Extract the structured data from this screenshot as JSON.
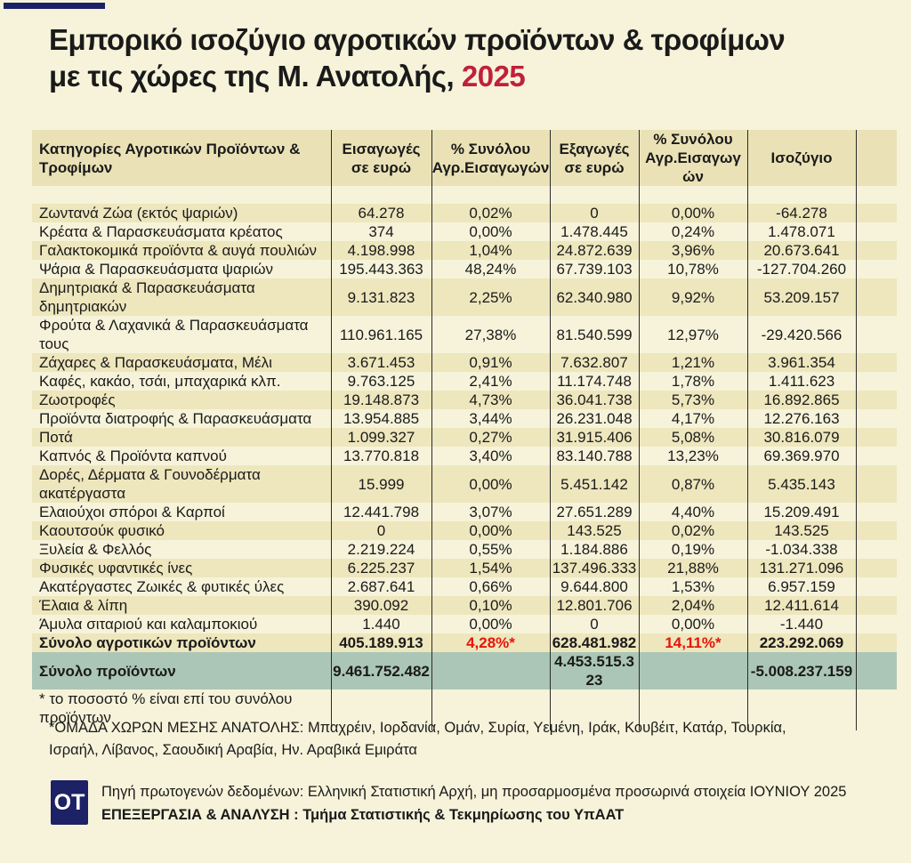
{
  "title": {
    "line1": "Εμπορικό ισοζύγιο αγροτικών προϊόντων & τροφίμων",
    "line2": "με τις χώρες της Μ. Ανατολής,",
    "year": "2025"
  },
  "colors": {
    "background": "#f6f3da",
    "stripe": "#eee6bd",
    "header_bg": "#eae2b6",
    "teal": "#abc6b6",
    "accent_red": "#c1203b",
    "pct_red": "#e81408",
    "navy": "#1d2166"
  },
  "chart_data": {
    "type": "table",
    "title": "Εμπορικό ισοζύγιο αγροτικών προϊόντων & τροφίμων με τις χώρες της Μ. Ανατολής, 2025",
    "columns": [
      "Κατηγορίες Αγροτικών Προϊόντων & Τροφίμων",
      "Εισαγωγές σε ευρώ",
      "% Συνόλου Αγρ.Εισαγωγών",
      "Εξαγωγές σε ευρώ",
      "% Συνόλου Αγρ.Εισαγωγών",
      "Ισοζύγιο"
    ],
    "rows": [
      [
        "Ζωντανά Ζώα (εκτός ψαριών)",
        "64.278",
        "0,02%",
        "0",
        "0,00%",
        "-64.278"
      ],
      [
        "Κρέατα & Παρασκευάσματα κρέατος",
        "374",
        "0,00%",
        "1.478.445",
        "0,24%",
        "1.478.071"
      ],
      [
        "Γαλακτοκομικά προϊόντα & αυγά πουλιών",
        "4.198.998",
        "1,04%",
        "24.872.639",
        "3,96%",
        "20.673.641"
      ],
      [
        "Ψάρια & Παρασκευάσματα ψαριών",
        "195.443.363",
        "48,24%",
        "67.739.103",
        "10,78%",
        "-127.704.260"
      ],
      [
        "Δημητριακά & Παρασκευάσματα δημητριακών",
        "9.131.823",
        "2,25%",
        "62.340.980",
        "9,92%",
        "53.209.157"
      ],
      [
        "Φρούτα & Λαχανικά & Παρασκευάσματα τους",
        "110.961.165",
        "27,38%",
        "81.540.599",
        "12,97%",
        "-29.420.566"
      ],
      [
        "Ζάχαρες & Παρασκευάσματα, Μέλι",
        "3.671.453",
        "0,91%",
        "7.632.807",
        "1,21%",
        "3.961.354"
      ],
      [
        "Καφές, κακάο, τσάι, μπαχαρικά κλπ.",
        "9.763.125",
        "2,41%",
        "11.174.748",
        "1,78%",
        "1.411.623"
      ],
      [
        "Ζωοτροφές",
        "19.148.873",
        "4,73%",
        "36.041.738",
        "5,73%",
        "16.892.865"
      ],
      [
        "Προϊόντα διατροφής & Παρασκευάσματα",
        "13.954.885",
        "3,44%",
        "26.231.048",
        "4,17%",
        "12.276.163"
      ],
      [
        "Ποτά",
        "1.099.327",
        "0,27%",
        "31.915.406",
        "5,08%",
        "30.816.079"
      ],
      [
        "Καπνός & Προϊόντα καπνού",
        "13.770.818",
        "3,40%",
        "83.140.788",
        "13,23%",
        "69.369.970"
      ],
      [
        "Δορές, Δέρματα & Γουνοδέρματα ακατέργαστα",
        "15.999",
        "0,00%",
        "5.451.142",
        "0,87%",
        "5.435.143"
      ],
      [
        "Ελαιούχοι σπόροι & Καρποί",
        "12.441.798",
        "3,07%",
        "27.651.289",
        "4,40%",
        "15.209.491"
      ],
      [
        "Καουτσούκ φυσικό",
        "0",
        "0,00%",
        "143.525",
        "0,02%",
        "143.525"
      ],
      [
        "Ξυλεία & Φελλός",
        "2.219.224",
        "0,55%",
        "1.184.886",
        "0,19%",
        "-1.034.338"
      ],
      [
        "Φυσικές υφαντικές ίνες",
        "6.225.237",
        "1,54%",
        "137.496.333",
        "21,88%",
        "131.271.096"
      ],
      [
        "Ακατέργαστες Ζωικές & φυτικές ύλες",
        "2.687.641",
        "0,66%",
        "9.644.800",
        "1,53%",
        "6.957.159"
      ],
      [
        "Έλαια & λίπη",
        "390.092",
        "0,10%",
        "12.801.706",
        "2,04%",
        "12.411.614"
      ],
      [
        "Άμυλα σιταριού και καλαμποκιού",
        "1.440",
        "0,00%",
        "0",
        "0,00%",
        "-1.440"
      ]
    ],
    "total_agri": [
      "Σύνολο αγροτικών προϊόντων",
      "405.189.913",
      "4,28%*",
      "628.481.982",
      "14,11%*",
      "223.292.069"
    ],
    "total_all": [
      "Σύνολο προϊόντων",
      "9.461.752.482",
      "",
      "4.453.515.323",
      "",
      "-5.008.237.159"
    ],
    "footnote": "* το ποσοστό % είναι επί του συνόλου προϊόντων"
  },
  "note_middle_east": "*ΟΜΑΔΑ ΧΩΡΩΝ ΜΕΣΗΣ ΑΝΑΤΟΛΗΣ: Μπαχρέιν, Ιορδανία, Ομάν, Συρία, Υεμένη, Ιράκ, Κουβέιτ, Κατάρ, Τουρκία, Ισραήλ, Λίβανος, Σαουδική Αραβία, Ην. Αραβικά Εμιράτα",
  "footer": {
    "logo": "OT",
    "source": "Πηγή πρωτογενών δεδομένων: Ελληνική Στατιστική Αρχή, μη προσαρμοσμένα προσωρινά στοιχεία ΙΟΥΝΙΟΥ 2025",
    "analysis": "ΕΠΕΞΕΡΓΑΣΙΑ & ΑΝΑΛΥΣΗ : Τμήμα Στατιστικής & Τεκμηρίωσης του ΥπΑΑΤ"
  }
}
